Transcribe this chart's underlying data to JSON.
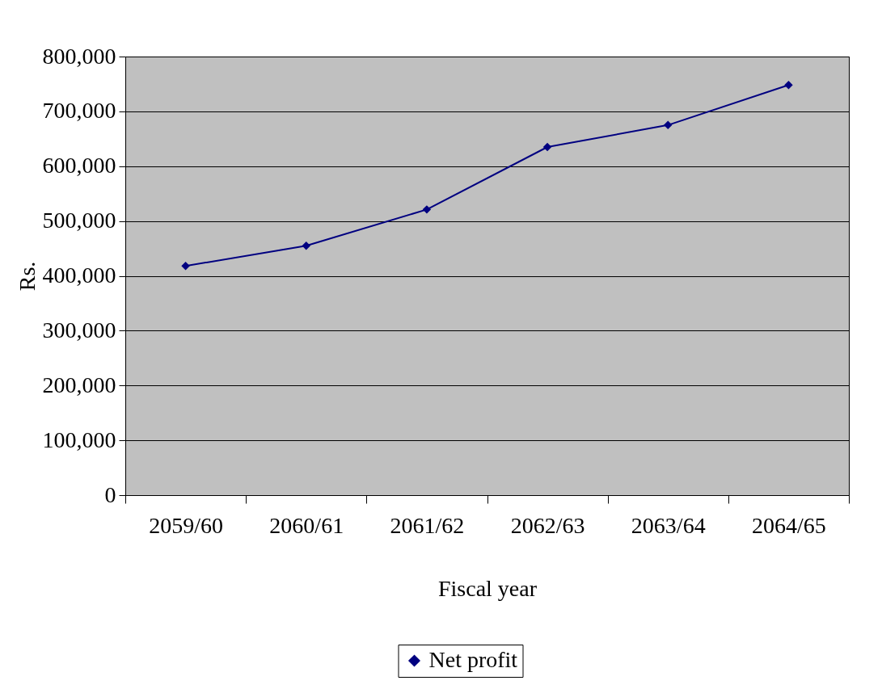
{
  "chart_data": {
    "type": "line",
    "xlabel": "Fiscal year",
    "ylabel": "Rs.",
    "categories": [
      "2059/60",
      "2060/61",
      "2061/62",
      "2062/63",
      "2063/64",
      "2064/65"
    ],
    "series": [
      {
        "name": "Net profit",
        "color": "#000080",
        "values": [
          418000,
          455000,
          521000,
          635000,
          675000,
          748000
        ]
      }
    ],
    "ylim": [
      0,
      800000
    ],
    "yticks": [
      0,
      {
        "value": 100000,
        "label": "100,000"
      },
      {
        "value": 200000,
        "label": "200,000"
      },
      {
        "value": 300000,
        "label": "300,000"
      },
      {
        "value": 400000,
        "label": "400,000"
      },
      {
        "value": 500000,
        "label": "500,000"
      },
      {
        "value": 600000,
        "label": "600,000"
      },
      {
        "value": 700000,
        "label": "700,000"
      },
      {
        "value": 800000,
        "label": "800,000"
      }
    ],
    "grid": "y",
    "legend": "bottom",
    "marker": "diamond",
    "line_style": "solid"
  }
}
